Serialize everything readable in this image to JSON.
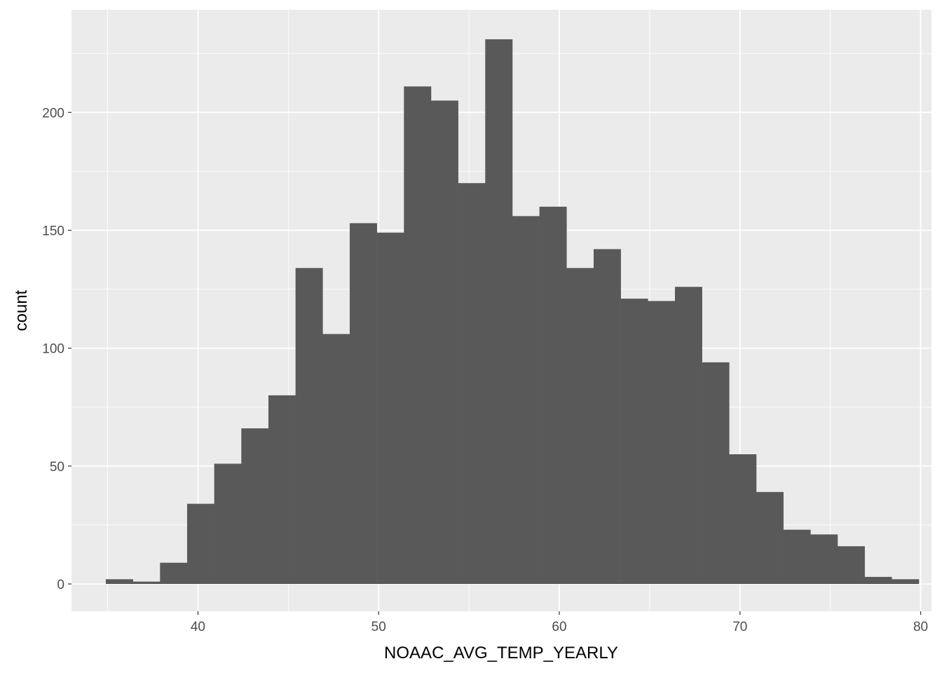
{
  "chart_data": {
    "type": "bar",
    "subtype": "histogram",
    "xlabel": "NOAAC_AVG_TEMP_YEARLY",
    "ylabel": "count",
    "xlim": [
      33.0,
      80.6
    ],
    "ylim": [
      -11.6,
      243.5
    ],
    "x_ticks": [
      40,
      50,
      60,
      70,
      80
    ],
    "y_ticks": [
      0,
      50,
      100,
      150,
      200
    ],
    "grid": true,
    "bin_width": 1.5,
    "first_bin_left": 34.9,
    "values": [
      2,
      1,
      9,
      34,
      51,
      66,
      80,
      134,
      106,
      153,
      149,
      211,
      205,
      170,
      231,
      156,
      160,
      134,
      142,
      121,
      120,
      126,
      94,
      55,
      39,
      23,
      21,
      16,
      3,
      2
    ],
    "colors": {
      "panel": "#EBEBEB",
      "grid_major": "#FFFFFF",
      "bar": "#595959"
    }
  }
}
